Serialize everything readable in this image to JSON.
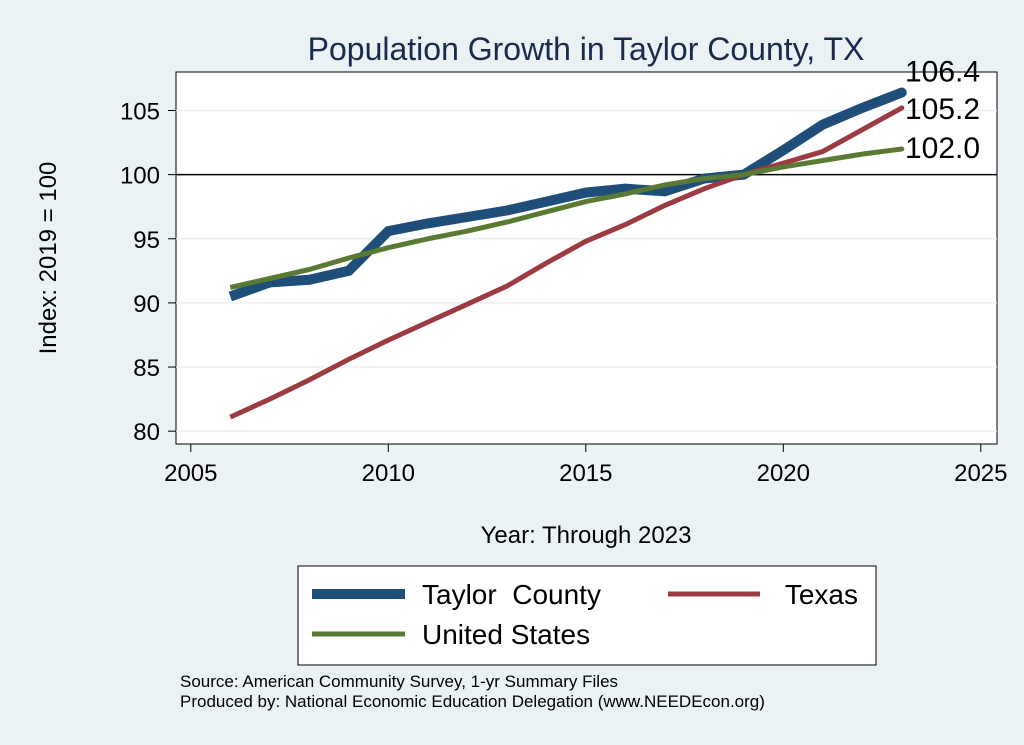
{
  "chart_data": {
    "type": "line",
    "title": "Population Growth in Taylor County, TX",
    "xlabel": "Year: Through 2023",
    "ylabel": "Index: 2019 = 100",
    "xlim": [
      2005,
      2025
    ],
    "ylim": [
      79,
      108
    ],
    "xticks": [
      2005,
      2010,
      2015,
      2020,
      2025
    ],
    "yticks": [
      80,
      85,
      90,
      95,
      100,
      105
    ],
    "reference_line": 100,
    "grid": true,
    "legend_position": "bottom",
    "series": [
      {
        "name": "Taylor  County",
        "color": "#1f4e79",
        "x": [
          2006,
          2007,
          2008,
          2009,
          2010,
          2011,
          2012,
          2013,
          2014,
          2015,
          2016,
          2017,
          2018,
          2019,
          2020,
          2021,
          2022,
          2023
        ],
        "y": [
          90.5,
          91.6,
          91.8,
          92.5,
          95.6,
          96.2,
          96.7,
          97.2,
          97.9,
          98.6,
          98.9,
          98.7,
          99.7,
          100.0,
          101.9,
          103.9,
          105.2,
          106.4
        ],
        "end_label": "106.4"
      },
      {
        "name": "Texas",
        "color": "#9c3b41",
        "x": [
          2006,
          2007,
          2008,
          2009,
          2010,
          2011,
          2012,
          2013,
          2014,
          2015,
          2016,
          2017,
          2018,
          2019,
          2020,
          2021,
          2022,
          2023
        ],
        "y": [
          81.1,
          82.5,
          84.0,
          85.6,
          87.1,
          88.5,
          89.9,
          91.3,
          93.1,
          94.8,
          96.1,
          97.6,
          98.9,
          100.0,
          100.9,
          101.8,
          103.5,
          105.2
        ],
        "end_label": "105.2"
      },
      {
        "name": "United States",
        "color": "#5a7a34",
        "x": [
          2006,
          2007,
          2008,
          2009,
          2010,
          2011,
          2012,
          2013,
          2014,
          2015,
          2016,
          2017,
          2018,
          2019,
          2020,
          2021,
          2022,
          2023
        ],
        "y": [
          91.2,
          91.9,
          92.6,
          93.5,
          94.3,
          95.0,
          95.6,
          96.3,
          97.1,
          97.9,
          98.5,
          99.2,
          99.7,
          100.0,
          100.6,
          101.1,
          101.6,
          102.0
        ],
        "end_label": "102.0"
      }
    ]
  },
  "footer": {
    "source": "Source: American Community Survey, 1-yr Summary Files",
    "produced_by": "Produced by: National Economic Education Delegation (www.NEEDEcon.org)"
  }
}
